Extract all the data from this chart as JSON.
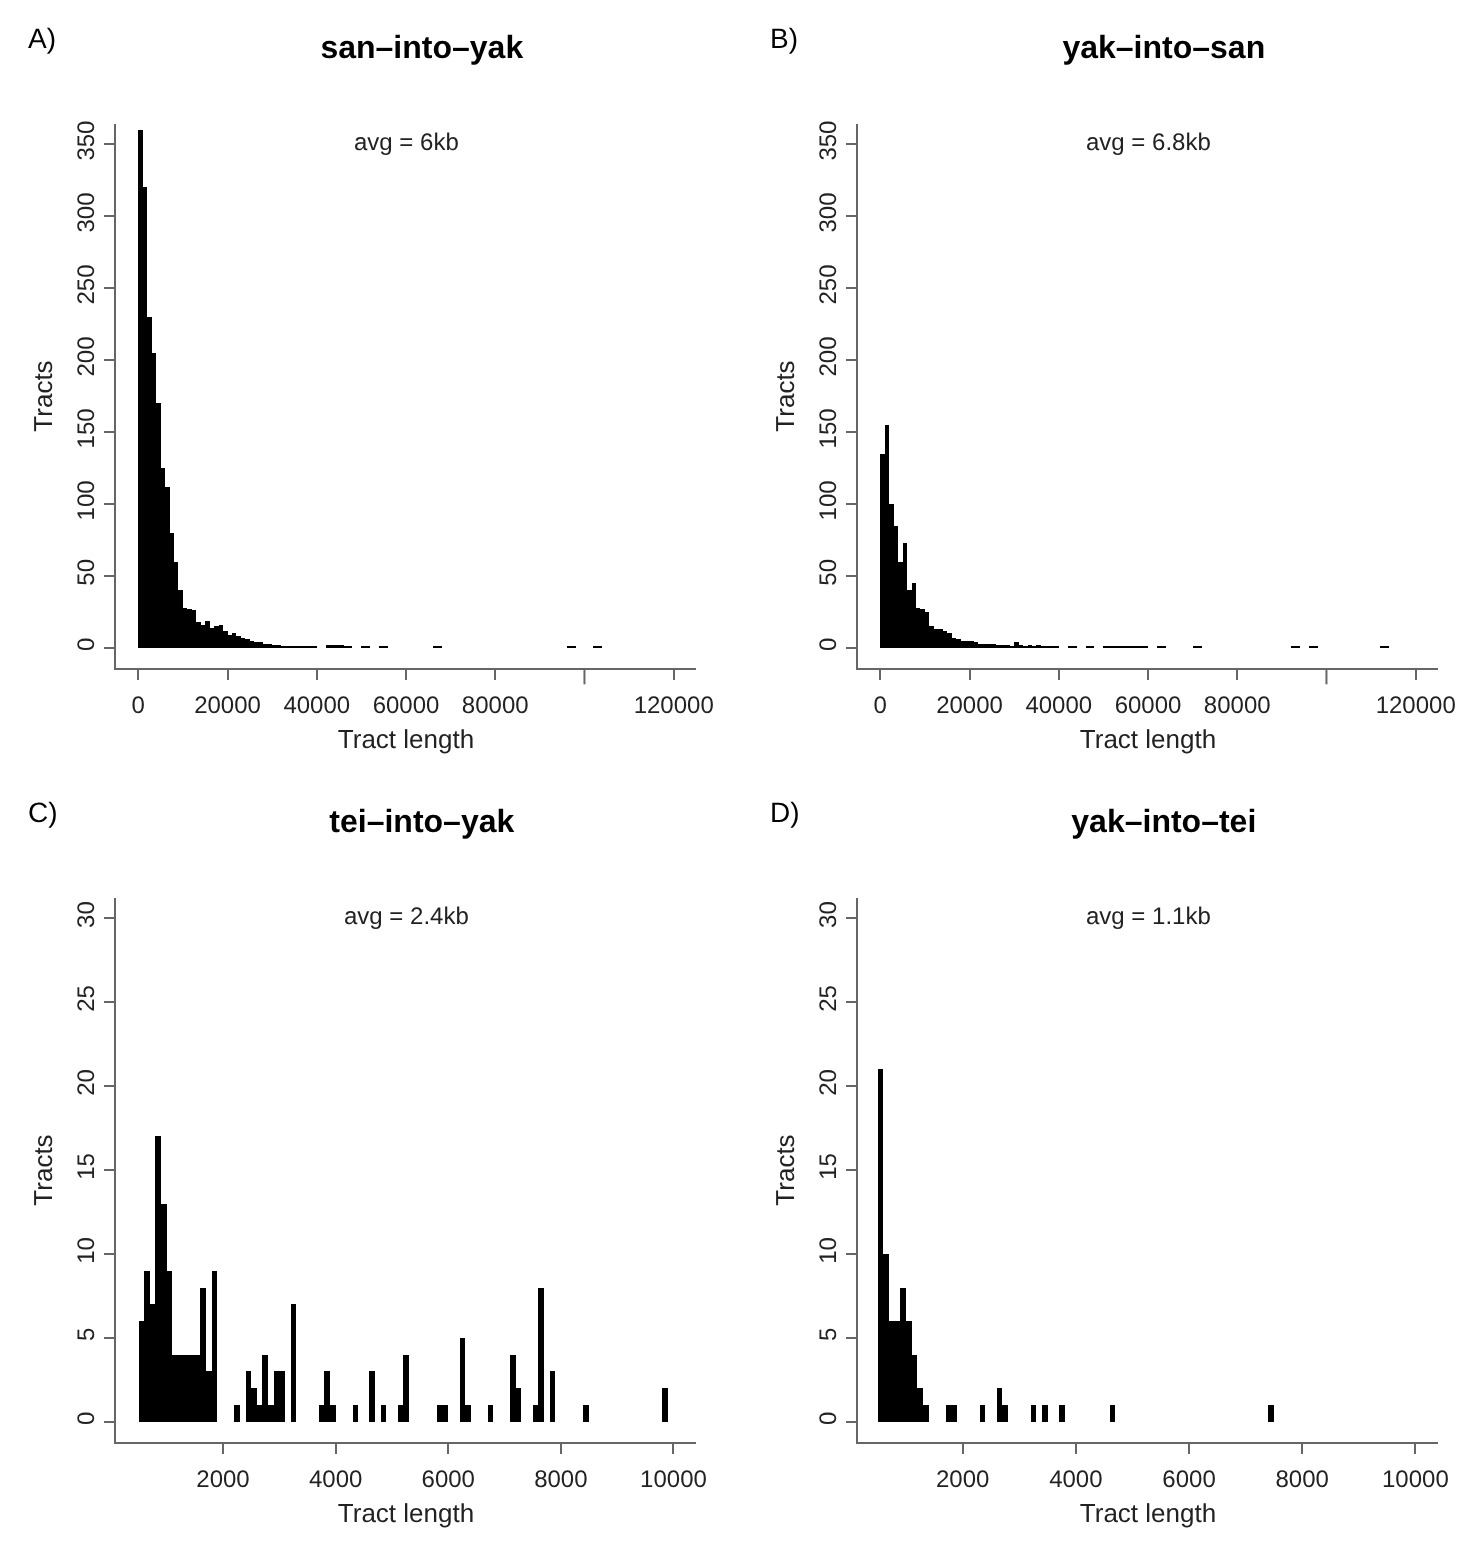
{
  "chart_data": [
    {
      "type": "histogram",
      "title": "san–into–yak",
      "xlabel": "Tract length",
      "ylabel": "Tracts",
      "annotations": [
        "A)",
        "avg = 6kb"
      ],
      "color": "#000000",
      "grid": false,
      "bins": [
        0,
        1000,
        2000,
        3000,
        4000,
        5000,
        6000,
        7000,
        8000,
        9000,
        10000,
        11000,
        12000,
        13000,
        14000,
        15000,
        16000,
        17000,
        18000,
        19000,
        20000,
        21000,
        22000,
        23000,
        24000,
        25000,
        26000,
        27000,
        28000,
        29000,
        30000,
        32000,
        34000,
        36000,
        38000,
        40000,
        42000,
        44000,
        46000,
        48000,
        50000,
        52000,
        54000,
        56000,
        66000,
        68000,
        96000,
        98000,
        102000,
        104000
      ],
      "values": [
        360,
        320,
        230,
        205,
        170,
        125,
        112,
        80,
        60,
        40,
        28,
        27,
        26,
        18,
        16,
        19,
        14,
        15,
        16,
        12,
        9,
        10,
        8,
        7,
        6,
        5,
        4,
        4,
        3,
        3,
        2,
        1,
        1,
        1,
        1,
        0,
        2,
        2,
        1,
        0,
        1,
        0,
        1,
        0,
        1,
        0,
        1,
        0,
        1
      ],
      "xlim": [
        -5000,
        125000
      ],
      "xticks": [
        0,
        20000,
        40000,
        60000,
        80000,
        {
          "value": 100000,
          "label": null
        },
        120000
      ],
      "ylim": [
        -14,
        364
      ],
      "yticks": [
        0,
        50,
        100,
        150,
        200,
        250,
        300,
        350
      ]
    },
    {
      "type": "histogram",
      "title": "yak–into–san",
      "xlabel": "Tract length",
      "ylabel": "Tracts",
      "annotations": [
        "B)",
        "avg = 6.8kb"
      ],
      "color": "#000000",
      "grid": false,
      "bins": [
        0,
        1000,
        2000,
        3000,
        4000,
        5000,
        6000,
        7000,
        8000,
        9000,
        10000,
        11000,
        12000,
        13000,
        14000,
        15000,
        16000,
        17000,
        18000,
        19000,
        20000,
        21000,
        22000,
        23000,
        24000,
        25000,
        26000,
        27000,
        28000,
        29000,
        30000,
        31000,
        32000,
        33000,
        34000,
        35000,
        36000,
        37000,
        38000,
        39000,
        40000,
        42000,
        44000,
        46000,
        48000,
        50000,
        52000,
        54000,
        56000,
        58000,
        60000,
        62000,
        64000,
        70000,
        72000,
        92000,
        94000,
        96000,
        98000,
        112000,
        114000
      ],
      "values": [
        135,
        155,
        100,
        85,
        60,
        73,
        40,
        45,
        28,
        27,
        25,
        15,
        13,
        13,
        12,
        10,
        7,
        6,
        5,
        5,
        5,
        4,
        3,
        3,
        3,
        3,
        2,
        2,
        2,
        1,
        4,
        2,
        1,
        2,
        1,
        2,
        1,
        1,
        1,
        1,
        0,
        1,
        0,
        1,
        0,
        1,
        1,
        1,
        1,
        1,
        0,
        1,
        0,
        1,
        0,
        1,
        0,
        1,
        0,
        1
      ],
      "xlim": [
        -5000,
        125000
      ],
      "xticks": [
        0,
        20000,
        40000,
        60000,
        80000,
        {
          "value": 100000,
          "label": null
        },
        120000
      ],
      "ylim": [
        -14,
        364
      ],
      "yticks": [
        0,
        50,
        100,
        150,
        200,
        250,
        300,
        350
      ]
    },
    {
      "type": "histogram",
      "title": "tei–into–yak",
      "xlabel": "Tract length",
      "ylabel": "Tracts",
      "annotations": [
        "C)",
        "avg = 2.4kb"
      ],
      "color": "#000000",
      "grid": false,
      "bins": [
        500,
        600,
        700,
        800,
        900,
        1000,
        1100,
        1200,
        1300,
        1400,
        1500,
        1600,
        1700,
        1800,
        1900,
        2200,
        2300,
        2400,
        2500,
        2600,
        2700,
        2800,
        2900,
        3000,
        3100,
        3200,
        3300,
        3700,
        3800,
        3900,
        4000,
        4300,
        4400,
        4600,
        4700,
        4800,
        4900,
        5100,
        5200,
        5300,
        5800,
        5900,
        6000,
        6200,
        6300,
        6400,
        6700,
        6800,
        7100,
        7200,
        7300,
        7500,
        7600,
        7700,
        7800,
        7900,
        8400,
        8500,
        9800,
        9900
      ],
      "values": [
        6,
        9,
        7,
        17,
        13,
        9,
        4,
        4,
        4,
        4,
        4,
        8,
        3,
        9,
        0,
        1,
        0,
        3,
        2,
        1,
        4,
        1,
        3,
        3,
        0,
        7,
        0,
        1,
        3,
        1,
        0,
        1,
        0,
        3,
        0,
        1,
        0,
        1,
        4,
        0,
        1,
        1,
        0,
        5,
        1,
        0,
        1,
        0,
        4,
        2,
        0,
        1,
        8,
        0,
        3,
        0,
        1,
        0,
        2
      ],
      "xlim": [
        100,
        10400
      ],
      "xticks": [
        2000,
        4000,
        6000,
        8000,
        10000
      ],
      "ylim": [
        -1.2,
        31.2
      ],
      "yticks": [
        0,
        5,
        10,
        15,
        20,
        25,
        30
      ]
    },
    {
      "type": "histogram",
      "title": "yak–into–tei",
      "xlabel": "Tract length",
      "ylabel": "Tracts",
      "annotations": [
        "D)",
        "avg = 1.1kb"
      ],
      "color": "#000000",
      "grid": false,
      "bins": [
        500,
        600,
        700,
        800,
        900,
        1000,
        1100,
        1200,
        1300,
        1400,
        1700,
        1800,
        1900,
        2300,
        2400,
        2600,
        2700,
        2800,
        3200,
        3300,
        3400,
        3500,
        3700,
        3800,
        4600,
        4700,
        7400,
        7500
      ],
      "values": [
        21,
        10,
        6,
        6,
        8,
        6,
        4,
        2,
        1,
        0,
        1,
        1,
        0,
        1,
        0,
        2,
        1,
        0,
        1,
        0,
        1,
        0,
        1,
        0,
        1,
        0,
        1
      ],
      "xlim": [
        150,
        10400
      ],
      "xticks": [
        2000,
        4000,
        6000,
        8000,
        10000
      ],
      "ylim": [
        -1.2,
        31.2
      ],
      "yticks": [
        0,
        5,
        10,
        15,
        20,
        25,
        30
      ]
    }
  ]
}
